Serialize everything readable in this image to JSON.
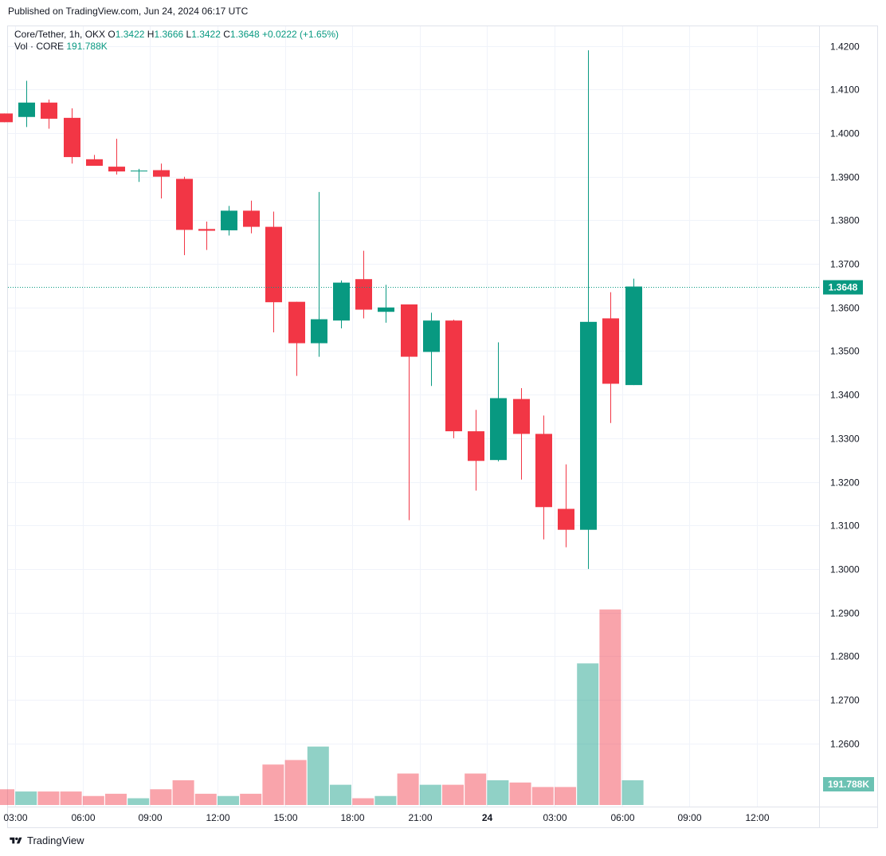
{
  "header": {
    "published_text": "Published on TradingView.com, Jun 24, 2024 06:17 UTC"
  },
  "legend": {
    "symbol": "Core/Tether, 1h, OKX",
    "o_label": "O",
    "o_value": "1.3422",
    "h_label": "H",
    "h_value": "1.3666",
    "l_label": "L",
    "l_value": "1.3422",
    "c_label": "C",
    "c_value": "1.3648",
    "change": "+0.0222 (+1.65%)",
    "vol_label": "Vol · CORE",
    "vol_value": "191.788K"
  },
  "footer": {
    "brand": "TradingView"
  },
  "chart_data": {
    "type": "candlestick",
    "ylim": [
      1.2455,
      1.4245
    ],
    "y_ticks": [
      "1.4200",
      "1.4100",
      "1.4000",
      "1.3900",
      "1.3800",
      "1.3700",
      "1.3600",
      "1.3500",
      "1.3400",
      "1.3300",
      "1.3200",
      "1.3100",
      "1.3000",
      "1.2900",
      "1.2800",
      "1.2700",
      "1.2600"
    ],
    "x_ticks": [
      {
        "index": 0.5,
        "label": "03:00"
      },
      {
        "index": 3.5,
        "label": "06:00"
      },
      {
        "index": 6.5,
        "label": "09:00"
      },
      {
        "index": 9.5,
        "label": "12:00"
      },
      {
        "index": 12.5,
        "label": "15:00"
      },
      {
        "index": 15.5,
        "label": "18:00"
      },
      {
        "index": 18.5,
        "label": "21:00"
      },
      {
        "index": 21.5,
        "label": "24"
      },
      {
        "index": 24.5,
        "label": "03:00"
      },
      {
        "index": 27.5,
        "label": "06:00"
      },
      {
        "index": 30.5,
        "label": "09:00"
      },
      {
        "index": 33.5,
        "label": "12:00"
      }
    ],
    "last_price": 1.3648,
    "last_price_label": "1.3648",
    "last_volume_label": "191.788K",
    "up_color": "#089981",
    "down_color": "#f23645",
    "candles": [
      {
        "o": 1.4045,
        "h": 1.4045,
        "l": 1.4025,
        "c": 1.4025
      },
      {
        "o": 1.4037,
        "h": 1.412,
        "l": 1.4014,
        "c": 1.407
      },
      {
        "o": 1.407,
        "h": 1.4077,
        "l": 1.401,
        "c": 1.4033
      },
      {
        "o": 1.4035,
        "h": 1.4057,
        "l": 1.393,
        "c": 1.3945
      },
      {
        "o": 1.394,
        "h": 1.395,
        "l": 1.3925,
        "c": 1.3925
      },
      {
        "o": 1.3923,
        "h": 1.3987,
        "l": 1.3905,
        "c": 1.3912
      },
      {
        "o": 1.3913,
        "h": 1.3918,
        "l": 1.3888,
        "c": 1.3914
      },
      {
        "o": 1.3915,
        "h": 1.393,
        "l": 1.385,
        "c": 1.39
      },
      {
        "o": 1.3895,
        "h": 1.39,
        "l": 1.372,
        "c": 1.3778
      },
      {
        "o": 1.378,
        "h": 1.3797,
        "l": 1.3732,
        "c": 1.3776
      },
      {
        "o": 1.3777,
        "h": 1.3833,
        "l": 1.3765,
        "c": 1.3822
      },
      {
        "o": 1.3822,
        "h": 1.3845,
        "l": 1.377,
        "c": 1.3785
      },
      {
        "o": 1.3785,
        "h": 1.382,
        "l": 1.3543,
        "c": 1.3612
      },
      {
        "o": 1.3613,
        "h": 1.3613,
        "l": 1.3443,
        "c": 1.3518
      },
      {
        "o": 1.3518,
        "h": 1.3865,
        "l": 1.3487,
        "c": 1.3573
      },
      {
        "o": 1.357,
        "h": 1.3662,
        "l": 1.3552,
        "c": 1.3657
      },
      {
        "o": 1.3665,
        "h": 1.373,
        "l": 1.3575,
        "c": 1.3595
      },
      {
        "o": 1.359,
        "h": 1.3652,
        "l": 1.3565,
        "c": 1.36
      },
      {
        "o": 1.3607,
        "h": 1.3607,
        "l": 1.3112,
        "c": 1.3487
      },
      {
        "o": 1.3498,
        "h": 1.3588,
        "l": 1.342,
        "c": 1.357
      },
      {
        "o": 1.357,
        "h": 1.3572,
        "l": 1.33,
        "c": 1.3316
      },
      {
        "o": 1.3316,
        "h": 1.3365,
        "l": 1.318,
        "c": 1.3248
      },
      {
        "o": 1.325,
        "h": 1.352,
        "l": 1.3247,
        "c": 1.3392
      },
      {
        "o": 1.339,
        "h": 1.3415,
        "l": 1.3205,
        "c": 1.331
      },
      {
        "o": 1.331,
        "h": 1.3352,
        "l": 1.3068,
        "c": 1.3142
      },
      {
        "o": 1.3138,
        "h": 1.324,
        "l": 1.305,
        "c": 1.309
      },
      {
        "o": 1.309,
        "h": 1.419,
        "l": 1.3,
        "c": 1.3567
      },
      {
        "o": 1.3575,
        "h": 1.3635,
        "l": 1.3335,
        "c": 1.3425
      },
      {
        "o": 1.3422,
        "h": 1.3666,
        "l": 1.3422,
        "c": 1.3648
      }
    ],
    "volume_scale_max": 100,
    "volumes": [
      7,
      6,
      6,
      6,
      4,
      5,
      3,
      7,
      11,
      5,
      4,
      5,
      18,
      20,
      26,
      9,
      3,
      4,
      14,
      9,
      9,
      14,
      11,
      10,
      8,
      8,
      63,
      87,
      11
    ]
  }
}
